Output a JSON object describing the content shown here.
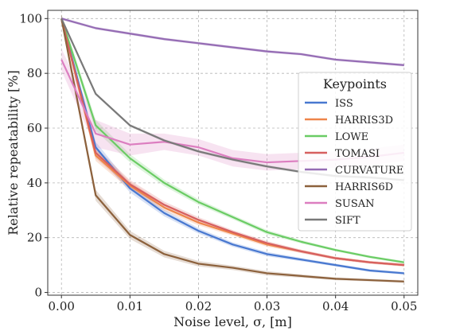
{
  "chart_data": {
    "type": "line",
    "title": "",
    "xlabel": "Noise level, σ, [m]",
    "ylabel": "Relative repeatability [%]",
    "xlim": [
      -0.002,
      0.052
    ],
    "ylim": [
      -1,
      103
    ],
    "xticks": [
      0.0,
      0.01,
      0.02,
      0.03,
      0.04,
      0.05
    ],
    "xtick_labels": [
      "0.00",
      "0.01",
      "0.02",
      "0.03",
      "0.04",
      "0.05"
    ],
    "yticks": [
      0,
      20,
      40,
      60,
      80,
      100
    ],
    "ytick_labels": [
      "0",
      "20",
      "40",
      "60",
      "80",
      "100"
    ],
    "grid": true,
    "legend": {
      "title": "Keypoints",
      "placement": "right"
    },
    "x": [
      0.0,
      0.005,
      0.01,
      0.015,
      0.02,
      0.025,
      0.03,
      0.035,
      0.04,
      0.045,
      0.05
    ],
    "series": [
      {
        "name": "ISS",
        "color": "#4878d0",
        "values": [
          100,
          53,
          38,
          29,
          22.5,
          17.5,
          14,
          12,
          10,
          8,
          7
        ],
        "band": [
          1.5,
          2,
          1.5,
          1.2,
          1,
          0.8,
          0.8,
          0.6,
          0.5,
          0.5,
          0.5
        ]
      },
      {
        "name": "HARRIS3D",
        "color": "#ee854a",
        "values": [
          100,
          50,
          39,
          31,
          25.5,
          21.5,
          17.5,
          15,
          12.5,
          11,
          10
        ],
        "band": [
          1.5,
          2,
          1.5,
          1.2,
          1,
          0.8,
          0.8,
          0.6,
          0.5,
          0.5,
          0.5
        ]
      },
      {
        "name": "LOWE",
        "color": "#6acc64",
        "values": [
          100,
          61,
          49,
          40,
          33,
          27.5,
          22,
          18.5,
          15.5,
          13,
          11
        ],
        "band": [
          1.5,
          2,
          1.5,
          1.2,
          1,
          0.8,
          0.8,
          0.6,
          0.5,
          0.5,
          0.5
        ]
      },
      {
        "name": "TOMASI",
        "color": "#d65f5f",
        "values": [
          100,
          51,
          39.5,
          32,
          26.5,
          22,
          18,
          15,
          12.5,
          11,
          10
        ],
        "band": [
          1.5,
          2,
          1.5,
          1.2,
          1,
          0.8,
          0.8,
          0.6,
          0.5,
          0.5,
          0.5
        ]
      },
      {
        "name": "CURVATURE",
        "color": "#956cb4",
        "values": [
          100,
          96.5,
          94.5,
          92.5,
          91,
          89.5,
          88,
          87,
          85,
          84,
          83
        ],
        "band": [
          0.5,
          0.5,
          0.5,
          0.5,
          0.5,
          0.5,
          0.5,
          0.5,
          0.5,
          0.5,
          0.5
        ]
      },
      {
        "name": "HARRIS6D",
        "color": "#8c613c",
        "values": [
          100,
          35.5,
          21,
          14,
          10.5,
          9,
          7,
          6,
          5,
          4.5,
          4
        ],
        "band": [
          1.5,
          2,
          1.5,
          1.2,
          1,
          0.8,
          0.8,
          0.6,
          0.5,
          0.5,
          0.5
        ]
      },
      {
        "name": "SUSAN",
        "color": "#dc7ec0",
        "values": [
          85,
          58,
          54,
          55,
          53,
          49,
          47.5,
          48,
          48.5,
          49.5,
          51
        ],
        "band": [
          4,
          5,
          4,
          3,
          3,
          3,
          3,
          3,
          3,
          3,
          3
        ]
      },
      {
        "name": "SIFT",
        "color": "#797979",
        "values": [
          100,
          72.5,
          61,
          55.5,
          51.5,
          48.5,
          46,
          44,
          42.5,
          42,
          41
        ],
        "band": [
          0.5,
          0.5,
          0.5,
          0.5,
          0.5,
          0.5,
          0.5,
          0.5,
          0.5,
          0.5,
          0.5
        ]
      }
    ]
  }
}
